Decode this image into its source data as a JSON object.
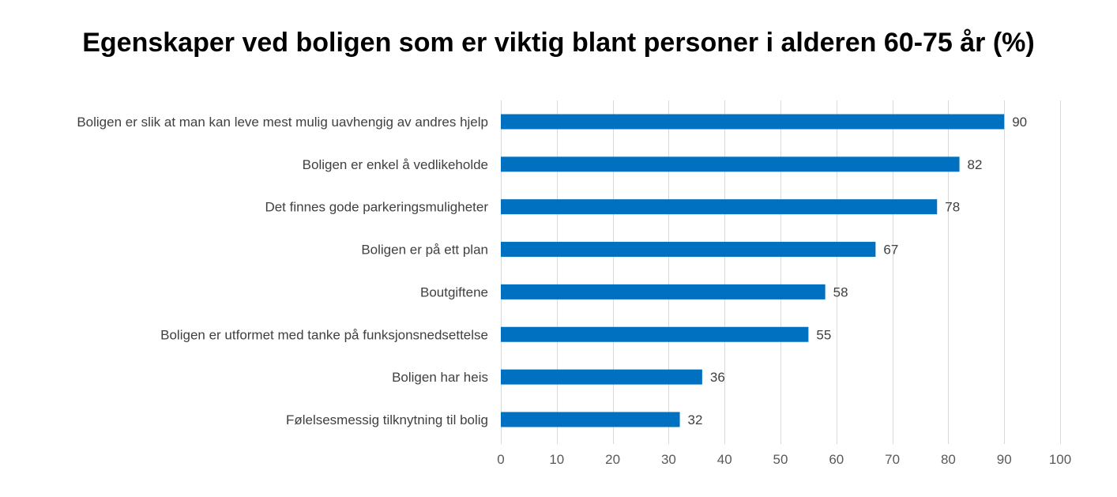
{
  "chart_data": {
    "type": "bar",
    "orientation": "horizontal",
    "title": "Egenskaper ved boligen som er viktig blant personer i alderen 60-75 år (%)",
    "categories": [
      "Boligen er slik at man kan leve mest mulig uavhengig av andres hjelp",
      "Boligen er enkel å vedlikeholde",
      "Det finnes gode parkeringsmuligheter",
      "Boligen er på ett plan",
      "Boutgiftene",
      "Boligen er utformet med tanke på funksjonsnedsettelse",
      "Boligen har heis",
      "Følelsesmessig tilknytning til bolig"
    ],
    "values": [
      90,
      82,
      78,
      67,
      58,
      55,
      36,
      32
    ],
    "xlim": [
      0,
      100
    ],
    "xticks": [
      0,
      10,
      20,
      30,
      40,
      50,
      60,
      70,
      80,
      90,
      100
    ],
    "grid": true,
    "legend": "none",
    "data_labels": true,
    "bar_color": "#0070C0",
    "grid_color": "#D9D9D9"
  }
}
